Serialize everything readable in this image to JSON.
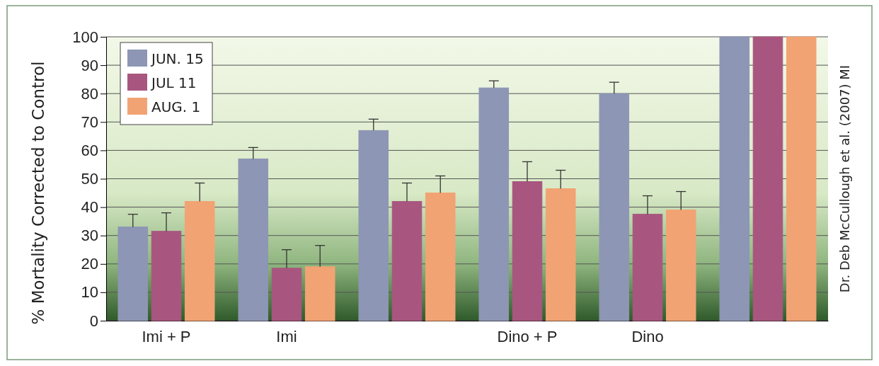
{
  "chart_data": {
    "type": "bar",
    "ylabel": "% Mortality Corrected to Control",
    "categories": [
      "Imi + P",
      "Imi",
      null,
      "Dino + P",
      "Dino",
      null
    ],
    "series": [
      {
        "name": "JUN. 15",
        "color": "#8d96b4",
        "values": [
          33,
          57,
          67,
          82,
          80,
          100
        ],
        "errors": [
          [
            33,
            37.5
          ],
          [
            57,
            61
          ],
          [
            67,
            71
          ],
          [
            82,
            84.5
          ],
          [
            80,
            84
          ],
          null
        ]
      },
      {
        "name": "JUL 11",
        "color": "#a8567f",
        "values": [
          31.5,
          18.5,
          42,
          49,
          37.5,
          100
        ],
        "errors": [
          [
            31.5,
            38
          ],
          [
            18.5,
            25
          ],
          [
            42,
            48.5
          ],
          [
            49,
            56
          ],
          [
            37.5,
            44
          ],
          null
        ]
      },
      {
        "name": "AUG. 1",
        "color": "#f2a373",
        "values": [
          42,
          19,
          45,
          46.5,
          39,
          100
        ],
        "errors": [
          [
            42,
            48.5
          ],
          [
            19,
            26.5
          ],
          [
            45,
            51
          ],
          [
            46.5,
            53
          ],
          [
            39,
            45.5
          ],
          null
        ]
      }
    ],
    "ylim": [
      0,
      100
    ],
    "yticks": [
      0,
      10,
      20,
      30,
      40,
      50,
      60,
      70,
      80,
      90,
      100
    ],
    "grid": "y",
    "legend": "top left",
    "annotations": [
      "Dr. Deb McCullough et al. (2007) MI"
    ]
  }
}
